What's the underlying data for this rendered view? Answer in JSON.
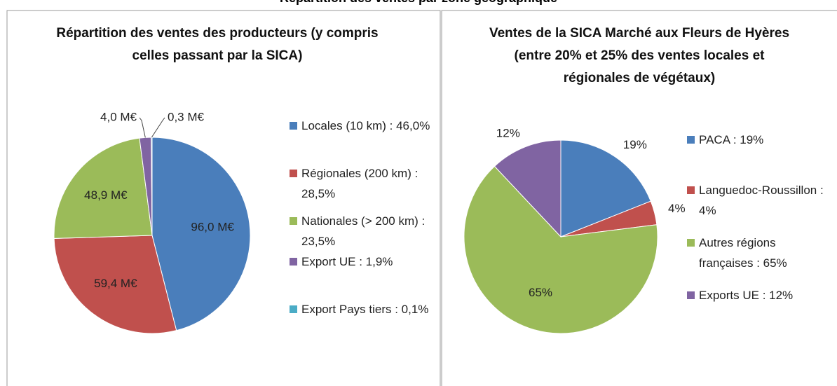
{
  "title": "Répartition des ventes par zone géographique",
  "chart_data": [
    {
      "type": "pie",
      "title": "Répartition des ventes des producteurs (y compris celles passant par la SICA)",
      "categories": [
        "Locales (10 km) : 46,0%",
        "Régionales (200 km) : 28,5%",
        "Nationales (> 200 km) : 23,5%",
        "Export UE : 1,9%",
        "Export Pays tiers : 0,1%"
      ],
      "values": [
        96.0,
        59.4,
        48.9,
        4.0,
        0.3
      ],
      "value_labels": [
        "96,0 M€",
        "59,4 M€",
        "48,9 M€",
        "4,0 M€",
        "0,3 M€"
      ],
      "colors": [
        "#4a7ebb",
        "#c0504d",
        "#9bbb59",
        "#8064a2",
        "#4bacc6"
      ]
    },
    {
      "type": "pie",
      "title": "Ventes de la SICA Marché aux Fleurs de Hyères (entre 20% et 25% des ventes locales et régionales de  végétaux)",
      "categories": [
        "PACA : 19%",
        "Languedoc-Roussillon : 4%",
        "Autres régions françaises : 65%",
        "Exports UE : 12%"
      ],
      "values": [
        19,
        4,
        65,
        12
      ],
      "value_labels": [
        "19%",
        "4%",
        "65%",
        "12%"
      ],
      "colors": [
        "#4a7ebb",
        "#c0504d",
        "#9bbb59",
        "#8064a2"
      ]
    }
  ]
}
